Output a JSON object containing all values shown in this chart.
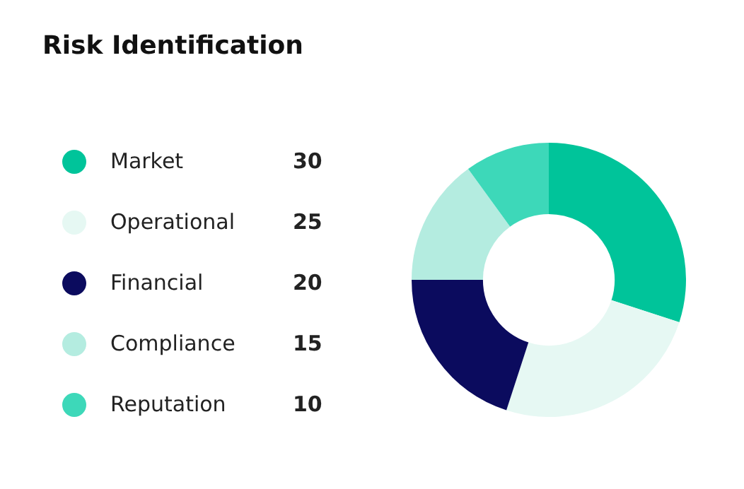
{
  "chart_data": {
    "type": "donut",
    "title": "Risk Identification",
    "categories": [
      "Market",
      "Operational",
      "Financial",
      "Compliance",
      "Reputation"
    ],
    "values": [
      30,
      25,
      20,
      15,
      10
    ],
    "colors": [
      "#00c49a",
      "#e6f8f3",
      "#0b0b5e",
      "#b4ece0",
      "#3dd8b9"
    ],
    "legend": "left",
    "data_labels": true
  }
}
